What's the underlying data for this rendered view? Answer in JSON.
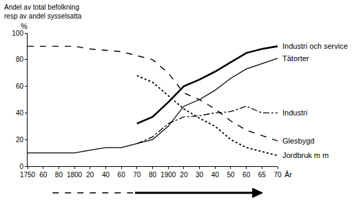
{
  "chart_data": {
    "type": "line",
    "ylabel": [
      "Andel av total befolkning",
      "resp av andel sysselsatta"
    ],
    "yunit": "%",
    "xlabel": "År",
    "categories": [
      "1750",
      "60",
      "80",
      "1800",
      "20",
      "40",
      "60",
      "70",
      "80",
      "1900",
      "20",
      "30",
      "40",
      "50",
      "60",
      "65",
      "70"
    ],
    "ylim": [
      0,
      100
    ],
    "yticks": [
      0,
      20,
      40,
      60,
      80,
      100
    ],
    "grid": false,
    "series": [
      {
        "name": "Industri och service",
        "color": "#000000",
        "line_style": "thick",
        "values": [
          null,
          null,
          null,
          null,
          null,
          null,
          null,
          32,
          37,
          48,
          60,
          65,
          71,
          78,
          85,
          88,
          90
        ]
      },
      {
        "name": "Tätorter",
        "color": "#000000",
        "line_style": "solid",
        "values": [
          10,
          10,
          10,
          10,
          12,
          14,
          14,
          17,
          20,
          30,
          45,
          50,
          57,
          66,
          73,
          77,
          81
        ]
      },
      {
        "name": "Industri",
        "color": "#000000",
        "line_style": "dashdot",
        "values": [
          null,
          null,
          null,
          null,
          null,
          null,
          null,
          17,
          22,
          32,
          37,
          38,
          40,
          41,
          45,
          40,
          40
        ]
      },
      {
        "name": "Glesbygd",
        "color": "#000000",
        "line_style": "dash",
        "values": [
          90,
          90,
          90,
          90,
          88,
          87,
          86,
          83,
          80,
          70,
          55,
          50,
          43,
          34,
          27,
          23,
          19
        ]
      },
      {
        "name": "Jordbruk m m",
        "color": "#000000",
        "line_style": "dot",
        "values": [
          null,
          null,
          null,
          null,
          null,
          null,
          null,
          68,
          63,
          53,
          43,
          36,
          30,
          20,
          14,
          11,
          8
        ]
      }
    ]
  }
}
